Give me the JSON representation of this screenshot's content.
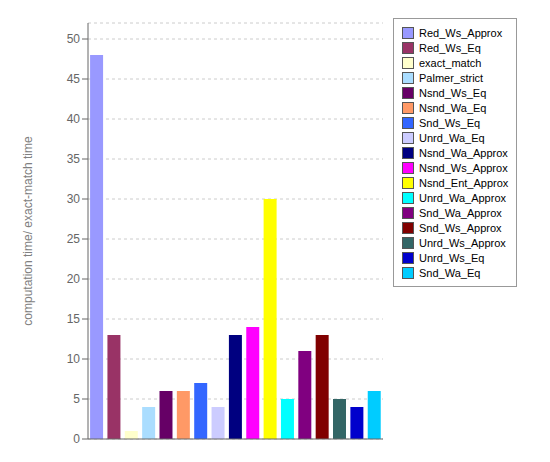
{
  "chart_data": {
    "type": "bar",
    "ylabel": "computation time/ exact-match time",
    "categories": [
      "Red_Ws_Approx",
      "Red_Ws_Eq",
      "exact_match",
      "Palmer_strict",
      "Nsnd_Ws_Eq",
      "Nsnd_Wa_Eq",
      "Snd_Ws_Eq",
      "Unrd_Wa_Eq",
      "Nsnd_Wa_Approx",
      "Nsnd_Ws_Approx",
      "Nsnd_Ent_Approx",
      "Unrd_Wa_Approx",
      "Snd_Wa_Approx",
      "Snd_Ws_Approx",
      "Unrd_Ws_Approx",
      "Unrd_Ws_Eq",
      "Snd_Wa_Eq"
    ],
    "values": [
      48,
      13,
      1,
      4,
      6,
      6,
      7,
      4,
      13,
      14,
      30,
      5,
      11,
      13,
      5,
      4,
      6
    ],
    "colors": [
      "#9999ff",
      "#993366",
      "#ffffcc",
      "#aaddff",
      "#660066",
      "#ff9966",
      "#3366ff",
      "#ccccff",
      "#000080",
      "#ff00ff",
      "#ffff00",
      "#00ffff",
      "#800080",
      "#800000",
      "#336666",
      "#0000cc",
      "#00ccff"
    ],
    "ylim": [
      0,
      52
    ],
    "yticks": [
      0,
      5,
      10,
      15,
      20,
      25,
      30,
      35,
      40,
      45,
      50
    ],
    "grid": true,
    "legend": "right",
    "tick_labels": "y"
  }
}
